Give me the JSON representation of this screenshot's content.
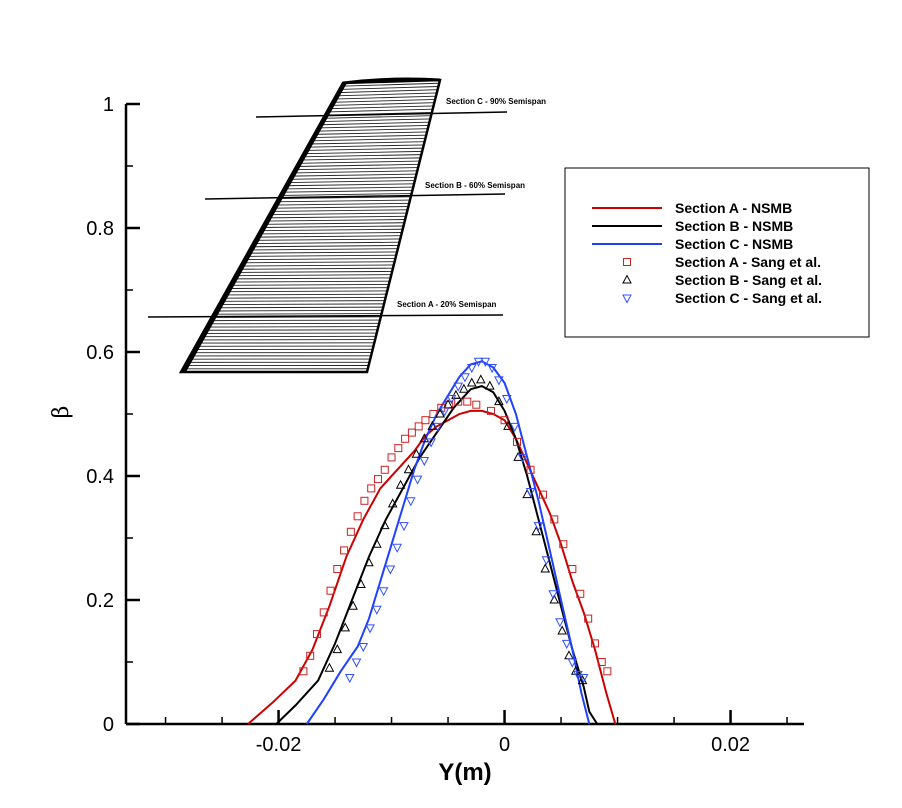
{
  "chart_data": {
    "type": "line",
    "xlabel": "Y(m)",
    "ylabel": "β",
    "xlim": [
      -0.0335,
      0.0265
    ],
    "ylim": [
      0,
      1.0
    ],
    "x_ticks": [
      -0.02,
      0,
      0.02
    ],
    "x_tick_labels": [
      "-0.02",
      "0",
      "0.02"
    ],
    "x_minor_ticks": [
      -0.03,
      -0.025,
      -0.015,
      -0.01,
      -0.005,
      0.005,
      0.01,
      0.015,
      0.025
    ],
    "y_ticks": [
      0,
      0.2,
      0.4,
      0.6,
      0.8,
      1.0
    ],
    "y_tick_labels": [
      "0",
      "0.2",
      "0.4",
      "0.6",
      "0.8",
      "1"
    ],
    "y_minor_ticks": [
      0.1,
      0.3,
      0.5,
      0.7,
      0.9
    ],
    "grid": false,
    "legend_position": "top-right",
    "series": [
      {
        "name": "Section A - NSMB",
        "style": "line",
        "color": "#cc0000",
        "x": [
          -0.0227,
          -0.0205,
          -0.0185,
          -0.017,
          -0.0155,
          -0.014,
          -0.0125,
          -0.011,
          -0.0095,
          -0.008,
          -0.007,
          -0.006,
          -0.005,
          -0.004,
          -0.003,
          -0.002,
          -0.001,
          0,
          0.001,
          0.002,
          0.003,
          0.004,
          0.005,
          0.006,
          0.007,
          0.008,
          0.009,
          0.0098
        ],
        "y": [
          0,
          0.035,
          0.07,
          0.12,
          0.19,
          0.27,
          0.33,
          0.38,
          0.41,
          0.44,
          0.465,
          0.48,
          0.49,
          0.5,
          0.505,
          0.505,
          0.5,
          0.49,
          0.46,
          0.42,
          0.38,
          0.34,
          0.29,
          0.23,
          0.18,
          0.12,
          0.05,
          0
        ]
      },
      {
        "name": "Section B - NSMB",
        "style": "line",
        "color": "#000000",
        "x": [
          -0.0202,
          -0.0185,
          -0.0165,
          -0.015,
          -0.0135,
          -0.012,
          -0.0105,
          -0.009,
          -0.0075,
          -0.006,
          -0.0045,
          -0.003,
          -0.002,
          -0.001,
          0,
          0.001,
          0.002,
          0.003,
          0.004,
          0.005,
          0.006,
          0.007,
          0.0075,
          0.0082
        ],
        "y": [
          0,
          0.03,
          0.07,
          0.13,
          0.2,
          0.27,
          0.33,
          0.38,
          0.43,
          0.47,
          0.51,
          0.54,
          0.545,
          0.535,
          0.505,
          0.46,
          0.4,
          0.33,
          0.26,
          0.19,
          0.12,
          0.06,
          0.02,
          0
        ]
      },
      {
        "name": "Section C - NSMB",
        "style": "line",
        "color": "#2040ff",
        "x": [
          -0.0175,
          -0.016,
          -0.0145,
          -0.013,
          -0.012,
          -0.011,
          -0.01,
          -0.009,
          -0.008,
          -0.007,
          -0.006,
          -0.005,
          -0.004,
          -0.003,
          -0.002,
          -0.001,
          0,
          0.001,
          0.002,
          0.003,
          0.004,
          0.005,
          0.006,
          0.0068,
          0.0075
        ],
        "y": [
          0,
          0.04,
          0.085,
          0.125,
          0.17,
          0.23,
          0.29,
          0.35,
          0.41,
          0.46,
          0.5,
          0.53,
          0.56,
          0.58,
          0.585,
          0.575,
          0.55,
          0.5,
          0.43,
          0.36,
          0.28,
          0.2,
          0.12,
          0.05,
          0
        ]
      },
      {
        "name": "Section A - Sang et al.",
        "style": "marker",
        "marker": "square",
        "color": "#cc2222",
        "x": [
          -0.0178,
          -0.0172,
          -0.0166,
          -0.016,
          -0.0154,
          -0.0148,
          -0.0142,
          -0.0136,
          -0.013,
          -0.0124,
          -0.0118,
          -0.0112,
          -0.0106,
          -0.01,
          -0.0094,
          -0.0088,
          -0.0082,
          -0.0076,
          -0.007,
          -0.0063,
          -0.0056,
          -0.0049,
          -0.0041,
          -0.0033,
          -0.0025,
          -0.0012,
          0,
          0.0011,
          0.0023,
          0.0034,
          0.0044,
          0.0052,
          0.006,
          0.0067,
          0.0074,
          0.008,
          0.0086,
          0.0091
        ],
        "y": [
          0.085,
          0.11,
          0.145,
          0.18,
          0.215,
          0.25,
          0.28,
          0.31,
          0.335,
          0.36,
          0.38,
          0.395,
          0.41,
          0.43,
          0.445,
          0.46,
          0.47,
          0.48,
          0.49,
          0.5,
          0.51,
          0.515,
          0.52,
          0.52,
          0.515,
          0.505,
          0.49,
          0.455,
          0.41,
          0.37,
          0.33,
          0.29,
          0.25,
          0.21,
          0.17,
          0.13,
          0.1,
          0.085
        ]
      },
      {
        "name": "Section B - Sang et al.",
        "style": "marker",
        "marker": "triangle-up",
        "color": "#000000",
        "x": [
          -0.0155,
          -0.0148,
          -0.0141,
          -0.0134,
          -0.0127,
          -0.012,
          -0.0113,
          -0.0106,
          -0.0099,
          -0.0092,
          -0.0085,
          -0.0078,
          -0.0071,
          -0.0064,
          -0.0057,
          -0.005,
          -0.0043,
          -0.0036,
          -0.0029,
          -0.0021,
          -0.0013,
          -0.0005,
          0.0003,
          0.0012,
          0.002,
          0.0028,
          0.0036,
          0.0044,
          0.0051,
          0.0057,
          0.0063,
          0.0069
        ],
        "y": [
          0.09,
          0.12,
          0.155,
          0.19,
          0.225,
          0.26,
          0.29,
          0.32,
          0.355,
          0.385,
          0.41,
          0.435,
          0.46,
          0.48,
          0.5,
          0.515,
          0.53,
          0.54,
          0.55,
          0.555,
          0.545,
          0.52,
          0.48,
          0.43,
          0.37,
          0.31,
          0.25,
          0.2,
          0.15,
          0.11,
          0.085,
          0.07
        ]
      },
      {
        "name": "Section C - Sang et al.",
        "style": "marker",
        "marker": "triangle-down",
        "color": "#3050ff",
        "x": [
          -0.0137,
          -0.0131,
          -0.0125,
          -0.0119,
          -0.0113,
          -0.0107,
          -0.0101,
          -0.0095,
          -0.0089,
          -0.0083,
          -0.0077,
          -0.0071,
          -0.0065,
          -0.0059,
          -0.0053,
          -0.0047,
          -0.0041,
          -0.0035,
          -0.0029,
          -0.0023,
          -0.0017,
          -0.0011,
          -0.0005,
          0.0002,
          0.0009,
          0.0016,
          0.0023,
          0.003,
          0.0037,
          0.0043,
          0.0049,
          0.0055,
          0.006,
          0.0065,
          0.007
        ],
        "y": [
          0.075,
          0.1,
          0.125,
          0.155,
          0.185,
          0.215,
          0.25,
          0.285,
          0.32,
          0.36,
          0.395,
          0.425,
          0.455,
          0.48,
          0.505,
          0.525,
          0.545,
          0.56,
          0.575,
          0.585,
          0.585,
          0.575,
          0.555,
          0.525,
          0.48,
          0.43,
          0.375,
          0.32,
          0.265,
          0.21,
          0.165,
          0.13,
          0.1,
          0.08,
          0.075
        ]
      }
    ],
    "inset": {
      "section_labels": [
        "Section C - 90% Semispan",
        "Section B - 60% Semispan",
        "Section A - 20% Semispan"
      ]
    }
  }
}
